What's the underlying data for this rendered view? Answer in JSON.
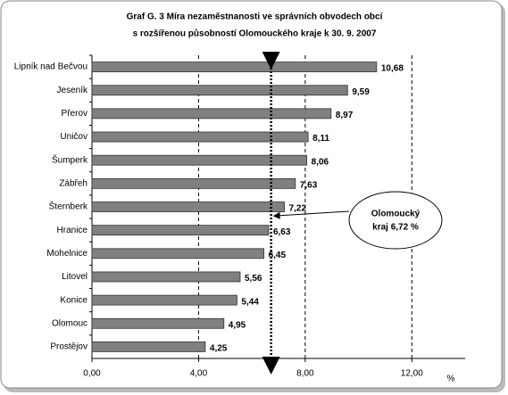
{
  "chart_data": {
    "type": "bar",
    "orientation": "horizontal",
    "title": [
      "Graf G. 3 Míra nezaměstnanosti ve správních obvodech obcí",
      "s rozšířenou působností Olomouckého kraje k 30. 9. 2007"
    ],
    "categories": [
      "Lipník nad Bečvou",
      "Jeseník",
      "Přerov",
      "Uničov",
      "Šumperk",
      "Zábřeh",
      "Šternberk",
      "Hranice",
      "Mohelnice",
      "Litovel",
      "Konice",
      "Olomouc",
      "Prostějov"
    ],
    "values": [
      10.68,
      9.59,
      8.97,
      8.11,
      8.06,
      7.63,
      7.22,
      6.63,
      6.45,
      5.56,
      5.44,
      4.95,
      4.25
    ],
    "value_labels": [
      "10,68",
      "9,59",
      "8,97",
      "8,11",
      "8,06",
      "7,63",
      "7,22",
      "6,63",
      "6,45",
      "5,56",
      "5,44",
      "4,95",
      "4,25"
    ],
    "color": "#808080",
    "xlim": [
      0,
      14
    ],
    "xticks": [
      {
        "value": 0,
        "label": "0,00"
      },
      {
        "value": 4,
        "label": "4,00"
      },
      {
        "value": 8,
        "label": "8,00"
      },
      {
        "value": 12,
        "label": "12,00"
      }
    ],
    "x_unit": "%",
    "grid": true,
    "reference_line": {
      "value": 6.72,
      "label": [
        "Olomoucký",
        "kraj 6,72 %"
      ]
    }
  }
}
